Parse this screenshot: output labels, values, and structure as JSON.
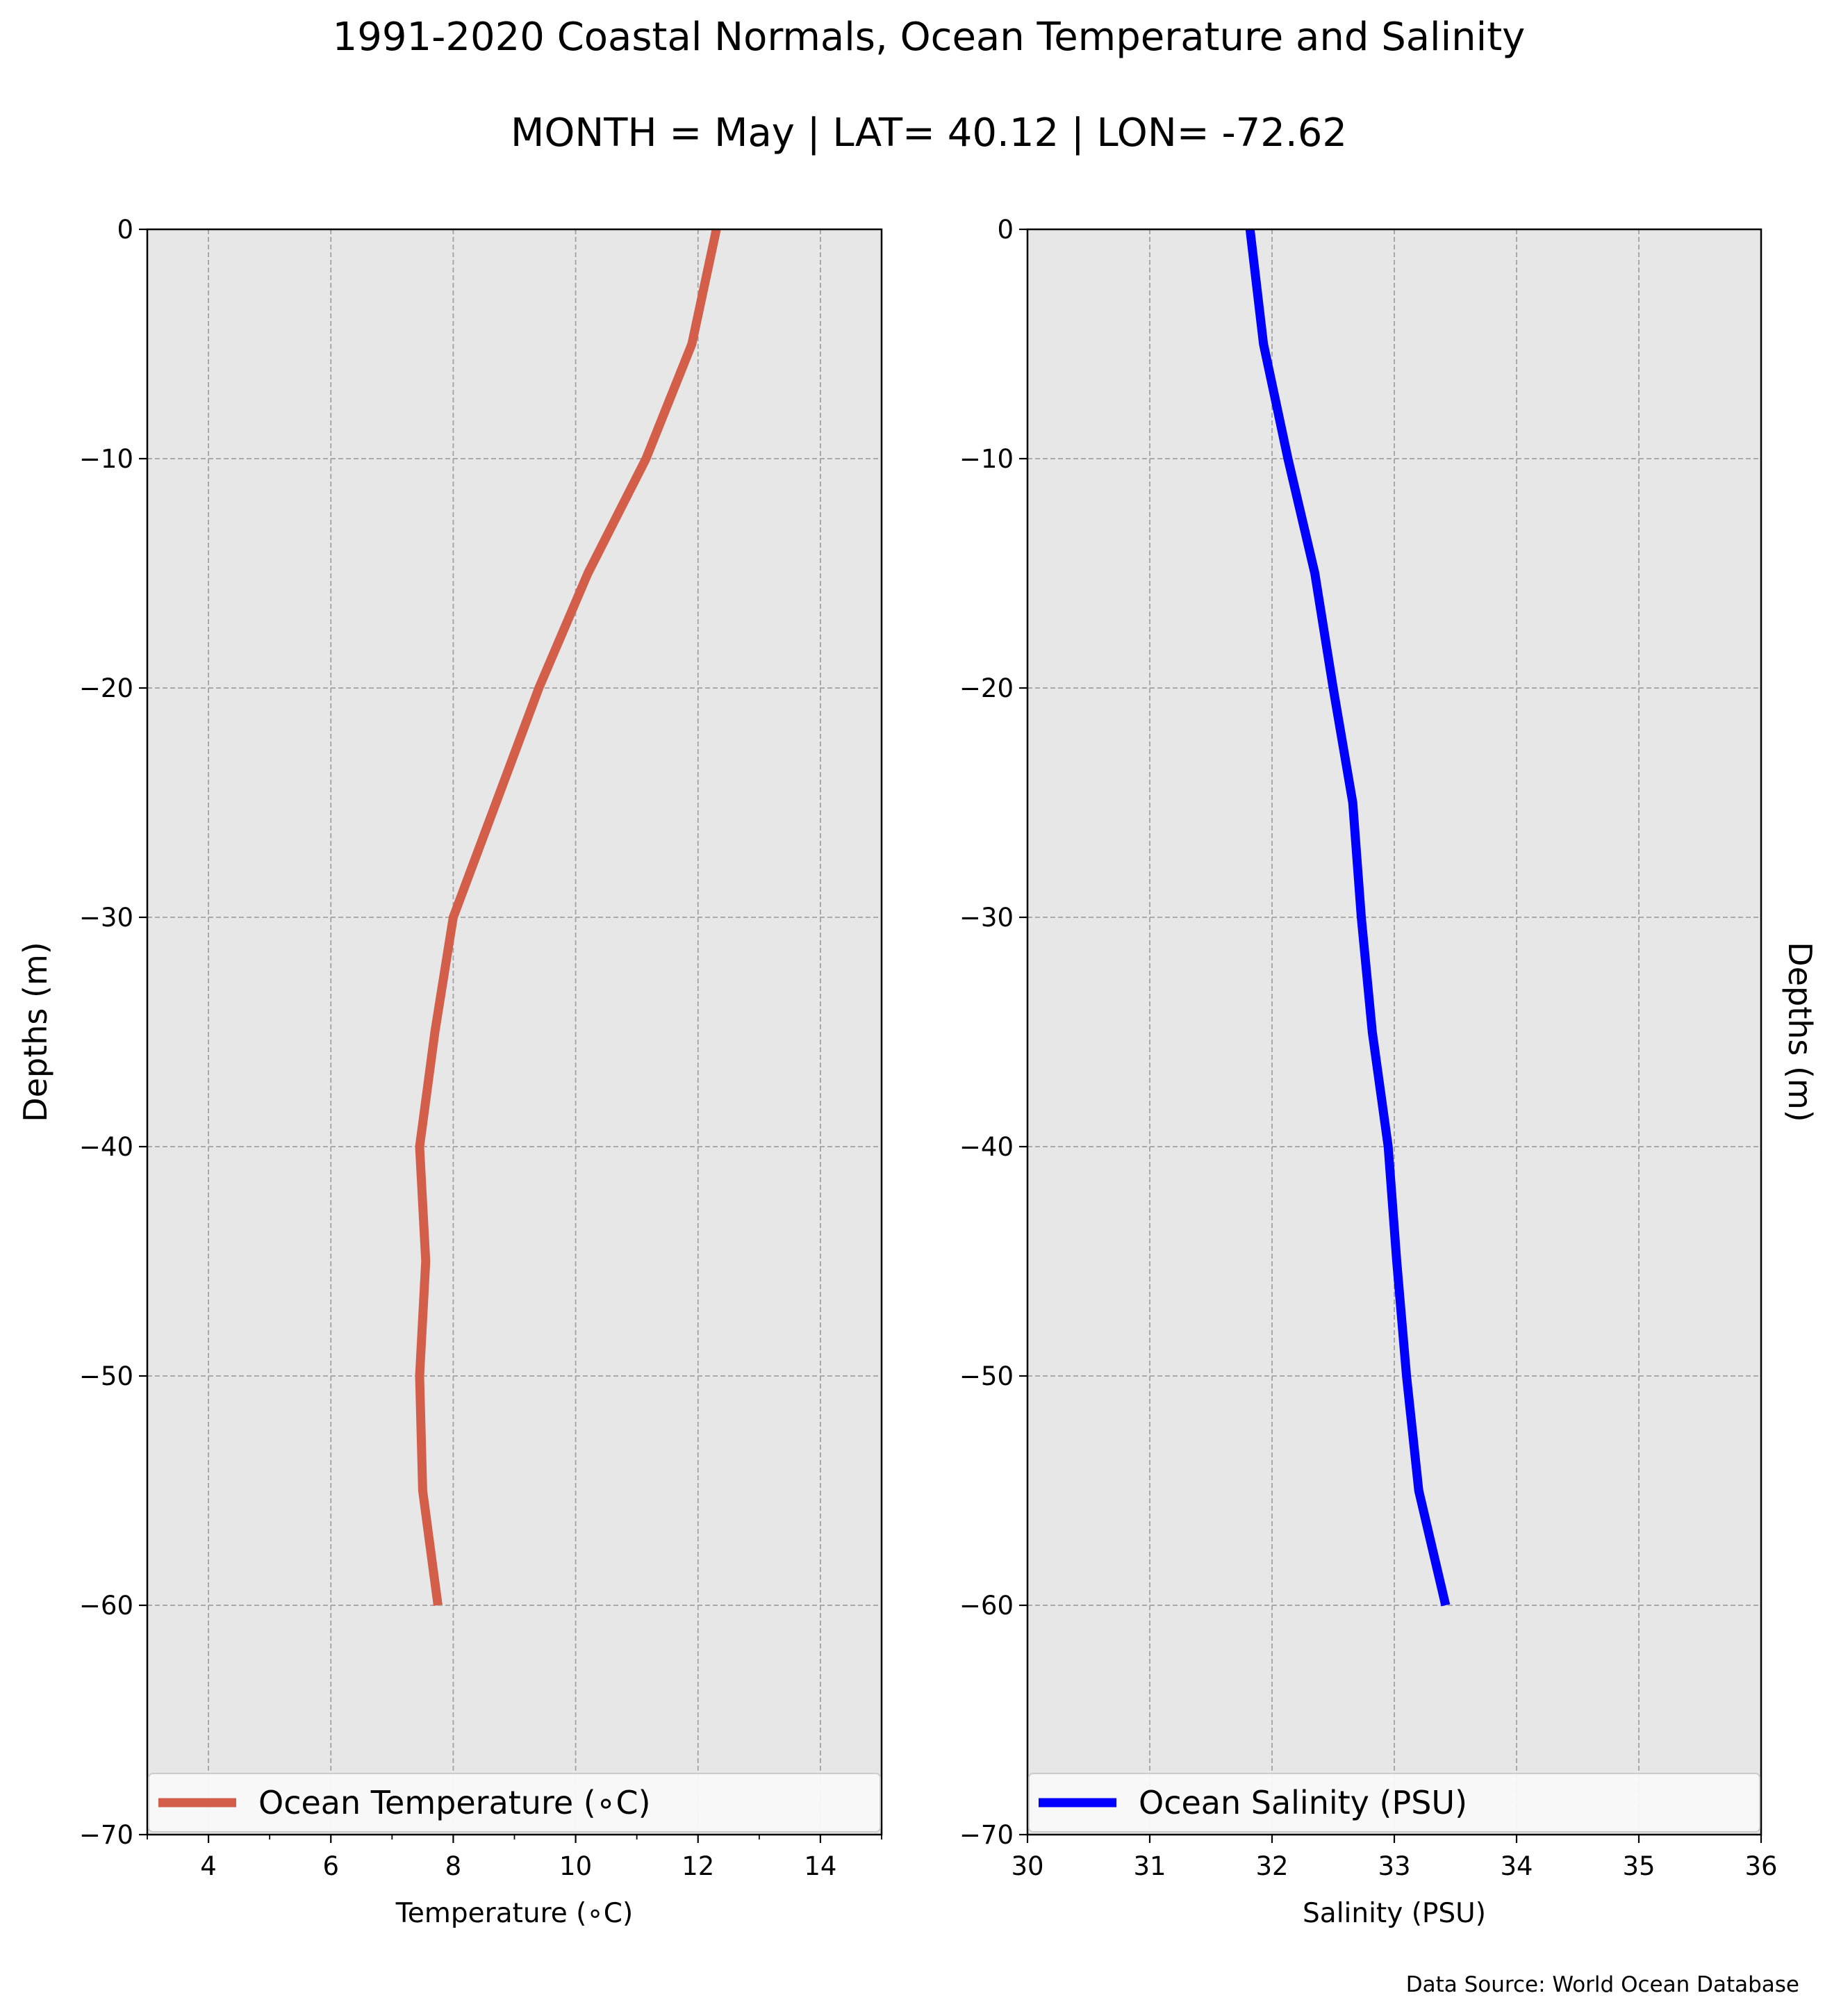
{
  "figure": {
    "title": "1991-2020 Coastal Normals, Ocean Temperature and Salinity",
    "subtitle": "MONTH = May | LAT= 40.12 | LON= -72.62",
    "source_note": "Data Source: World Ocean Database"
  },
  "chart_data": [
    {
      "type": "line",
      "xlabel": "Temperature (∘C)",
      "ylabel": "Depths (m)",
      "xlim": [
        3,
        15
      ],
      "ylim": [
        -70,
        0
      ],
      "xticks": [
        "4",
        "6",
        "8",
        "10",
        "12",
        "14"
      ],
      "yticks": [
        "0",
        "−10",
        "−20",
        "−30",
        "−40",
        "−50",
        "−60",
        "−70"
      ],
      "grid": true,
      "legend_placement": "bottom",
      "series": [
        {
          "name": "Ocean Temperature (∘C)",
          "color": "#d35f4b",
          "points": [
            {
              "x": 12.3,
              "y": 0
            },
            {
              "x": 11.9,
              "y": -5
            },
            {
              "x": 11.15,
              "y": -10
            },
            {
              "x": 10.2,
              "y": -15
            },
            {
              "x": 9.4,
              "y": -20
            },
            {
              "x": 8.7,
              "y": -25
            },
            {
              "x": 8.0,
              "y": -30
            },
            {
              "x": 7.7,
              "y": -35
            },
            {
              "x": 7.45,
              "y": -40
            },
            {
              "x": 7.55,
              "y": -45
            },
            {
              "x": 7.45,
              "y": -50
            },
            {
              "x": 7.5,
              "y": -55
            },
            {
              "x": 7.75,
              "y": -60
            }
          ]
        }
      ]
    },
    {
      "type": "line",
      "xlabel": "Salinity (PSU)",
      "ylabel": "Depths (m)",
      "xlim": [
        30,
        36
      ],
      "ylim": [
        -70,
        0
      ],
      "xticks": [
        "30",
        "31",
        "32",
        "33",
        "34",
        "35",
        "36"
      ],
      "yticks": [
        "0",
        "−10",
        "−20",
        "−30",
        "−40",
        "−50",
        "−60",
        "−70"
      ],
      "grid": true,
      "legend_placement": "bottom",
      "series": [
        {
          "name": "Ocean Salinity (PSU)",
          "color": "#0000ff",
          "points": [
            {
              "x": 31.82,
              "y": 0
            },
            {
              "x": 31.93,
              "y": -5
            },
            {
              "x": 32.13,
              "y": -10
            },
            {
              "x": 32.35,
              "y": -15
            },
            {
              "x": 32.5,
              "y": -20
            },
            {
              "x": 32.66,
              "y": -25
            },
            {
              "x": 32.73,
              "y": -30
            },
            {
              "x": 32.82,
              "y": -35
            },
            {
              "x": 32.95,
              "y": -40
            },
            {
              "x": 33.02,
              "y": -45
            },
            {
              "x": 33.1,
              "y": -50
            },
            {
              "x": 33.2,
              "y": -55
            },
            {
              "x": 33.42,
              "y": -60
            }
          ]
        }
      ]
    }
  ]
}
